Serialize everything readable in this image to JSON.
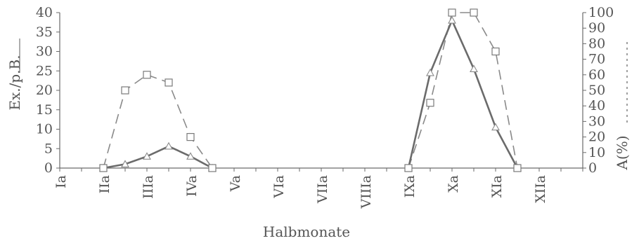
{
  "chart_data": {
    "type": "line",
    "xlabel": "Halbmonate",
    "ylabel_left": "Ex./p.B.",
    "ylabel_right": "A(%)",
    "y_left": {
      "lim": [
        0,
        40
      ],
      "ticks": [
        0,
        5,
        10,
        15,
        20,
        25,
        30,
        35,
        40
      ]
    },
    "y_right": {
      "lim": [
        0,
        100
      ],
      "ticks": [
        0,
        10,
        20,
        30,
        40,
        50,
        60,
        70,
        80,
        90,
        100
      ]
    },
    "categories": [
      "Ia",
      "IIa",
      "IIIa",
      "IVa",
      "Va",
      "VIa",
      "VIIa",
      "VIIIa",
      "IXa",
      "Xa",
      "XIa",
      "XIIa"
    ],
    "x_positions": [
      0,
      1,
      2,
      2.5,
      3,
      3.5,
      4,
      4.5,
      5,
      6,
      7,
      8,
      9,
      9.5,
      10,
      10.5,
      11,
      11.5,
      12,
      13,
      14
    ],
    "series": [
      {
        "axis": "left",
        "line_style": "solid",
        "marker": "triangle",
        "points": [
          [
            2,
            0
          ],
          [
            3,
            1
          ],
          [
            4,
            3
          ],
          [
            5,
            5.6
          ],
          [
            6,
            3
          ],
          [
            7,
            0
          ],
          [
            16,
            0
          ],
          [
            17,
            24.5
          ],
          [
            18,
            38
          ],
          [
            19,
            25.5
          ],
          [
            20,
            10.5
          ],
          [
            21,
            0
          ]
        ]
      },
      {
        "axis": "right",
        "line_style": "dashed",
        "marker": "square",
        "points": [
          [
            2,
            0
          ],
          [
            3,
            50
          ],
          [
            4,
            60
          ],
          [
            5,
            55
          ],
          [
            6,
            20
          ],
          [
            7,
            0
          ],
          [
            16,
            0
          ],
          [
            17,
            42
          ],
          [
            18,
            100
          ],
          [
            19,
            100
          ],
          [
            20,
            75
          ],
          [
            21,
            0
          ]
        ]
      }
    ],
    "colors": {
      "axis": "#6a6a6a",
      "text": "#555555",
      "series": "#6b6b6b"
    }
  }
}
